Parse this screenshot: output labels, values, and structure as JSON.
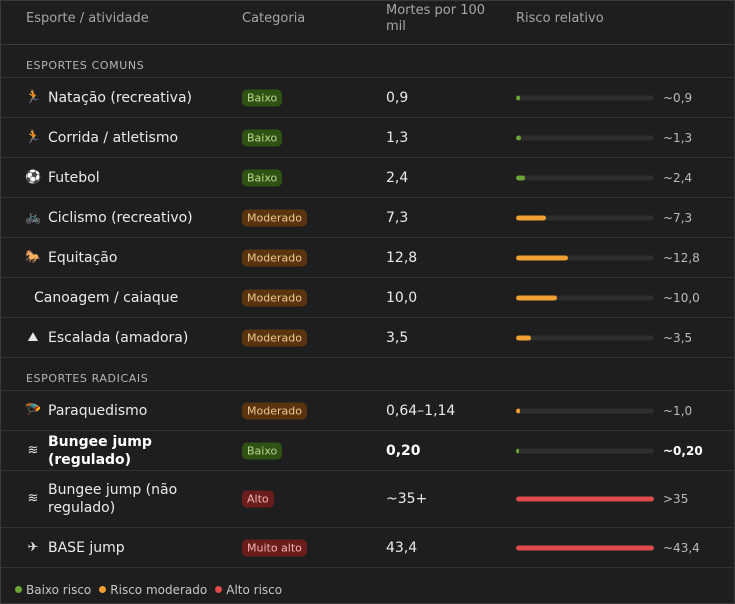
{
  "header": {
    "col_activity": "Esporte / atividade",
    "col_category": "Categoria",
    "col_deaths": "Mortes por 100 mil",
    "col_risk": "Risco relativo"
  },
  "sections": {
    "common": "ESPORTES COMUNS",
    "extreme": "ESPORTES RADICAIS"
  },
  "colors": {
    "low": "#6aa535",
    "moderate": "#f0a030",
    "high": "#e04a4a"
  },
  "rows": [
    {
      "icon": "swimmer-icon",
      "glyph": "🏃",
      "name": "Natação (recreativa)",
      "category": "Baixo",
      "level": "low",
      "deaths": "0,9",
      "approx": "~0,9",
      "fill": 0.029
    },
    {
      "icon": "runner-icon",
      "glyph": "🏃",
      "name": "Corrida / atletismo",
      "category": "Baixo",
      "level": "low",
      "deaths": "1,3",
      "approx": "~1,3",
      "fill": 0.036
    },
    {
      "icon": "soccer-ball-icon",
      "glyph": "⚽",
      "name": "Futebol",
      "category": "Baixo",
      "level": "low",
      "deaths": "2,4",
      "approx": "~2,4",
      "fill": 0.065
    },
    {
      "icon": "bicycle-icon",
      "glyph": "🚲",
      "name": "Ciclismo (recreativo)",
      "category": "Moderado",
      "level": "moderate",
      "deaths": "7,3",
      "approx": "~7,3",
      "fill": 0.22
    },
    {
      "icon": "horse-icon",
      "glyph": "🐎",
      "name": "Equitação",
      "category": "Moderado",
      "level": "moderate",
      "deaths": "12,8",
      "approx": "~12,8",
      "fill": 0.38
    },
    {
      "icon": "",
      "glyph": "",
      "name": "Canoagem / caiaque",
      "category": "Moderado",
      "level": "moderate",
      "deaths": "10,0",
      "approx": "~10,0",
      "fill": 0.3
    },
    {
      "icon": "mountain-icon",
      "glyph": "⛰",
      "name": "Escalada (amadora)",
      "category": "Moderado",
      "level": "moderate",
      "deaths": "3,5",
      "approx": "~3,5",
      "fill": 0.11
    },
    {
      "icon": "parachute-icon",
      "glyph": "🪂",
      "name": "Paraquedismo",
      "category": "Moderado",
      "level": "moderate",
      "deaths": "0,64–1,14",
      "approx": "~1,0",
      "fill": 0.029
    },
    {
      "icon": "wave-icon",
      "glyph": "≋",
      "name": "Bungee jump (regulado)",
      "category": "Baixo",
      "level": "low",
      "deaths": "0,20",
      "approx": "~0,20",
      "fill": 0.01,
      "bold": true
    },
    {
      "icon": "wave-icon",
      "glyph": "≋",
      "name": "Bungee jump (não regulado)",
      "category": "Alto",
      "level": "high",
      "deaths": "~35+",
      "approx": ">35",
      "fill": 1.0
    },
    {
      "icon": "plane-icon",
      "glyph": "✈",
      "name": "BASE jump",
      "category": "Muito alto",
      "level": "high",
      "deaths": "43,4",
      "approx": "~43,4",
      "fill": 1.0
    }
  ],
  "legend": [
    {
      "label": "Baixo risco",
      "level": "low"
    },
    {
      "label": "Risco moderado",
      "level": "moderate"
    },
    {
      "label": "Alto risco",
      "level": "high"
    }
  ]
}
